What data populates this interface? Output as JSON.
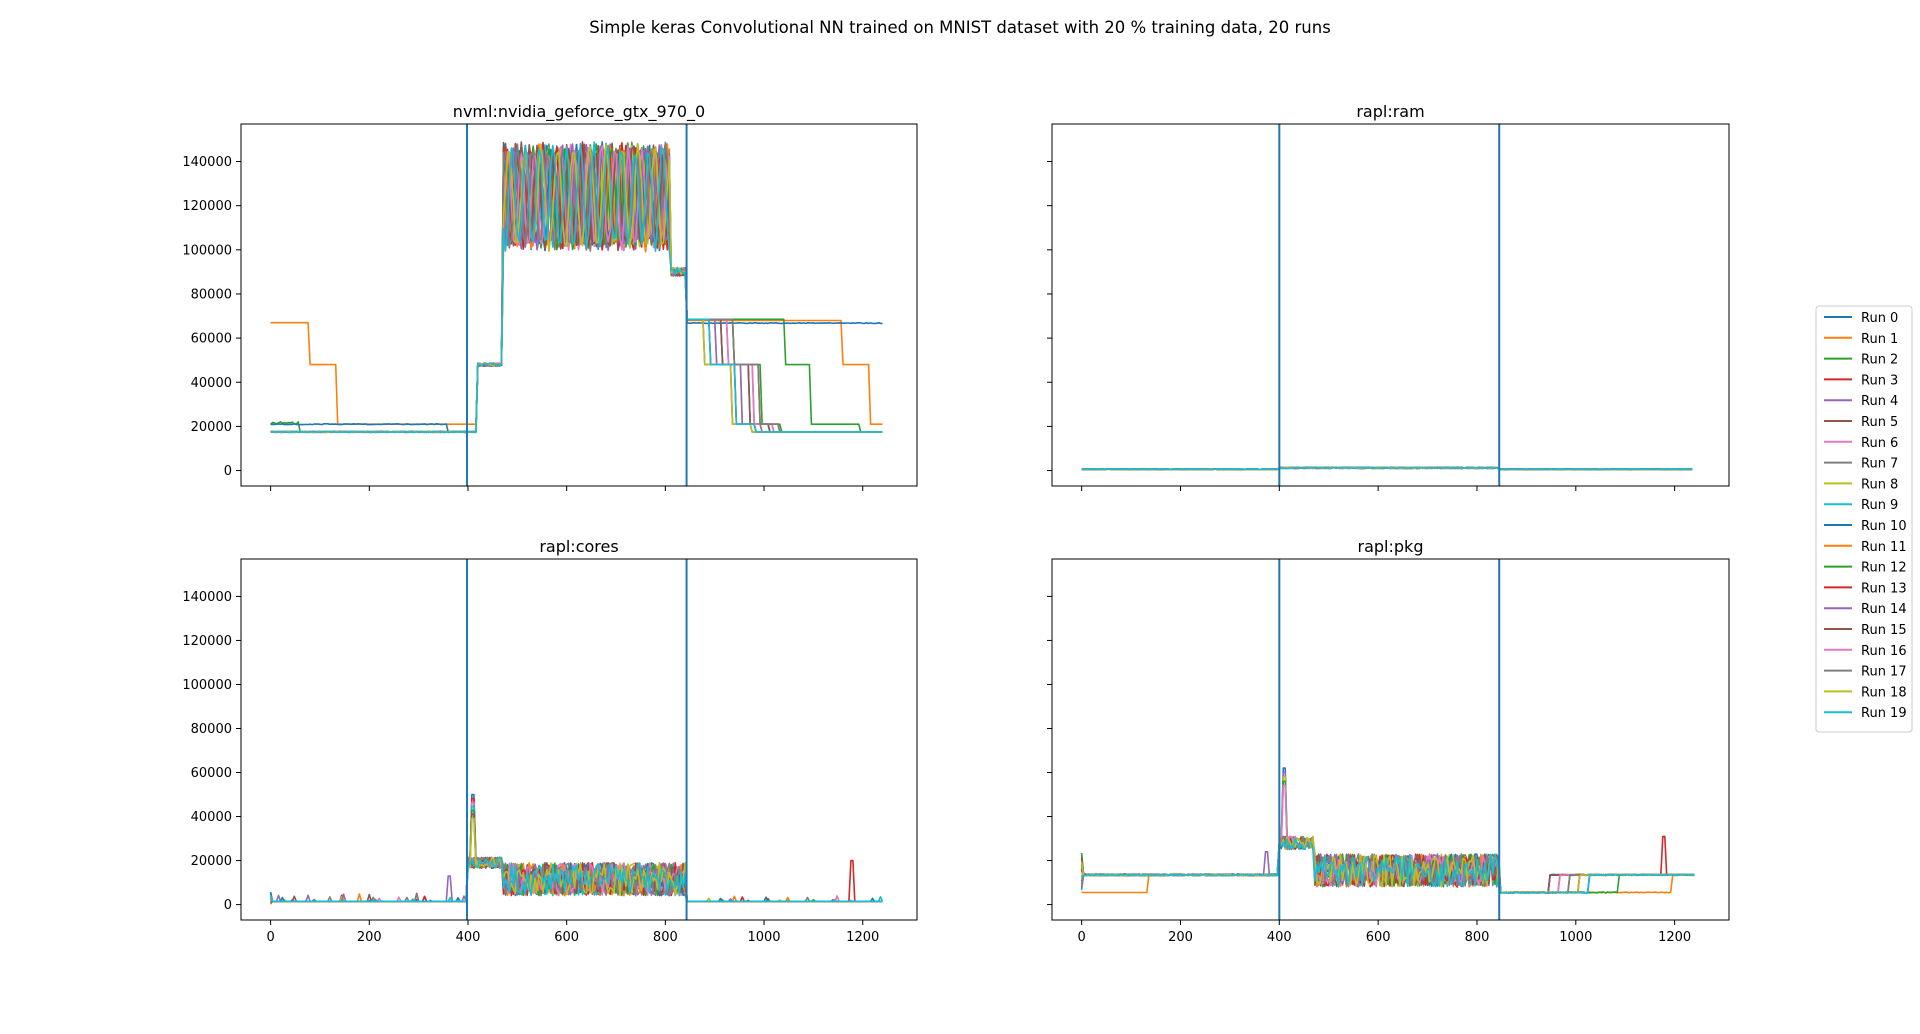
{
  "figure": {
    "suptitle": "Simple keras Convolutional NN trained on MNIST dataset with 20 % training data, 20 runs"
  },
  "legend": {
    "placement": "center-right",
    "entries": [
      "Run 0",
      "Run 1",
      "Run 2",
      "Run 3",
      "Run 4",
      "Run 5",
      "Run 6",
      "Run 7",
      "Run 8",
      "Run 9",
      "Run 10",
      "Run 11",
      "Run 12",
      "Run 13",
      "Run 14",
      "Run 15",
      "Run 16",
      "Run 17",
      "Run 18",
      "Run 19"
    ]
  },
  "colors": {
    "cycle": [
      "#1f77b4",
      "#ff7f0e",
      "#2ca02c",
      "#d62728",
      "#9467bd",
      "#8c564b",
      "#e377c2",
      "#7f7f7f",
      "#bcbd22",
      "#17becf"
    ],
    "vline": "#1f77b4"
  },
  "chart_data": [
    {
      "type": "line",
      "title": "nvml:nvidia_geforce_gtx_970_0",
      "xlim": [
        -60,
        1310
      ],
      "ylim": [
        -7000,
        157000
      ],
      "xticks": [
        0,
        200,
        400,
        600,
        800,
        1000,
        1200
      ],
      "xticklabels": [
        "",
        "",
        "",
        "",
        "",
        "",
        ""
      ],
      "yticks": [
        0,
        20000,
        40000,
        60000,
        80000,
        100000,
        120000,
        140000
      ],
      "yticklabels": [
        "0",
        "20000",
        "40000",
        "60000",
        "80000",
        "100000",
        "120000",
        "140000"
      ],
      "vlines": [
        398,
        843
      ],
      "pattern": "gpu",
      "series_notes": "Most runs: ~17500 idle until ~430, 48000 plateau 430-470, oscillating 100000-148000 from 470-810, ~90000 at 810-840, ~68000 at 843-880, ~48000 to ~930, ~21000 to ~975, ~17500 after. Run 1 starts at 67000 until 80, 48000 until 135, then 21000. Run 10 stays at ~21000 until 360 and ~66800 after 843 until 1240."
    },
    {
      "type": "line",
      "title": "rapl:ram",
      "xlim": [
        -60,
        1310
      ],
      "ylim": [
        -7000,
        157000
      ],
      "xticks": [
        0,
        200,
        400,
        600,
        800,
        1000,
        1200
      ],
      "xticklabels": [
        "",
        "",
        "",
        "",
        "",
        "",
        ""
      ],
      "yticks": [
        0,
        20000,
        40000,
        60000,
        80000,
        100000,
        120000,
        140000
      ],
      "yticklabels": [
        "",
        "",
        "",
        "",
        "",
        "",
        "",
        ""
      ],
      "vlines": [
        400,
        845
      ],
      "pattern": "ram",
      "series_notes": "All runs ~600 idle, ~1200 during training (400-845)."
    },
    {
      "type": "line",
      "title": "rapl:cores",
      "xlim": [
        -60,
        1310
      ],
      "ylim": [
        -7000,
        157000
      ],
      "xticks": [
        0,
        200,
        400,
        600,
        800,
        1000,
        1200
      ],
      "xticklabels": [
        "0",
        "200",
        "400",
        "600",
        "800",
        "1000",
        "1200"
      ],
      "yticks": [
        0,
        20000,
        40000,
        60000,
        80000,
        100000,
        120000,
        140000
      ],
      "yticklabels": [
        "0",
        "20000",
        "40000",
        "60000",
        "80000",
        "100000",
        "120000",
        "140000"
      ],
      "vlines": [
        398,
        843
      ],
      "pattern": "cores",
      "series_notes": "Idle ~1500; spike to ~50000 near 410; ~20000 for 400-470; oscillating 4000-20000 from 470-840; ~1500 after. Run 13 spike to 20000 near 1180."
    },
    {
      "type": "line",
      "title": "rapl:pkg",
      "xlim": [
        -60,
        1310
      ],
      "ylim": [
        -7000,
        157000
      ],
      "xticks": [
        0,
        200,
        400,
        600,
        800,
        1000,
        1200
      ],
      "xticklabels": [
        "0",
        "200",
        "400",
        "600",
        "800",
        "1000",
        "1200"
      ],
      "yticks": [
        0,
        20000,
        40000,
        60000,
        80000,
        100000,
        120000,
        140000
      ],
      "yticklabels": [
        "",
        "",
        "",
        "",
        "",
        "",
        "",
        ""
      ],
      "vlines": [
        400,
        845
      ],
      "pattern": "pkg",
      "series_notes": "Idle ~13500; Run 1 ~5500 until 135; spike to ~63000 near 410; 25000-30000 for 400-470; oscillating 8000-24000 from 470-840; ~5500 after 845 until ~945-1050 then ~13500. Run 13 spike to 31000 near 1180."
    }
  ]
}
